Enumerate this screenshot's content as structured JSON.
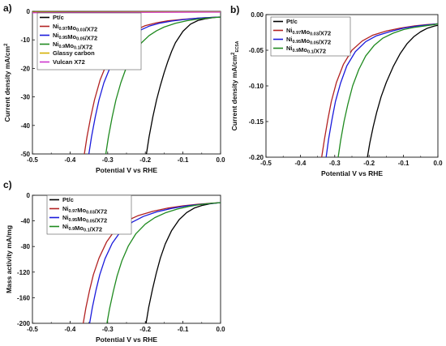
{
  "chart_data": [
    {
      "panel": "a)",
      "type": "line",
      "xlabel": "Potential V vs RHE",
      "ylabel": "Current density mA/cm",
      "ylabel_sup": "2",
      "ylabel_sub": "",
      "xlim": [
        -0.5,
        0.0
      ],
      "ylim": [
        -50,
        0
      ],
      "xticks": [
        "-0.5",
        "-0.4",
        "-0.3",
        "-0.2",
        "-0.1",
        "0.0"
      ],
      "yticks": [
        "0",
        "-10",
        "-20",
        "-30",
        "-40",
        "-50"
      ],
      "ytick_values": [
        0,
        -10,
        -20,
        -30,
        -40,
        -50
      ],
      "legend": "top-left",
      "series": [
        {
          "name": "Pt/c",
          "color": "#000000",
          "parts": [
            {
              "t": "Pt/c"
            }
          ],
          "x": [
            -0.197,
            -0.19,
            -0.18,
            -0.17,
            -0.16,
            -0.15,
            -0.14,
            -0.13,
            -0.12,
            -0.1,
            -0.08,
            -0.06,
            -0.04,
            -0.02,
            -0.005
          ],
          "y": [
            -50,
            -44,
            -37,
            -31,
            -26,
            -21.5,
            -17.5,
            -14,
            -11,
            -7,
            -4.5,
            -3.2,
            -2.6,
            -2.2,
            -2.0
          ]
        },
        {
          "name": "Ni0.97Mo0.03/X72",
          "color": "#b22222",
          "parts": [
            {
              "t": "Ni"
            },
            {
              "t": "0.97",
              "s": 1
            },
            {
              "t": "Mo"
            },
            {
              "t": "0.03",
              "s": 1
            },
            {
              "t": "/X72"
            }
          ],
          "x": [
            -0.362,
            -0.355,
            -0.345,
            -0.335,
            -0.32,
            -0.3,
            -0.28,
            -0.26,
            -0.24,
            -0.22,
            -0.2,
            -0.17,
            -0.14,
            -0.1,
            -0.06,
            -0.02,
            0.0
          ],
          "y": [
            -50,
            -44,
            -37,
            -31,
            -24,
            -17.5,
            -13,
            -10,
            -7.8,
            -6.2,
            -5,
            -4,
            -3.3,
            -2.8,
            -2.4,
            -2.1,
            -2.0
          ]
        },
        {
          "name": "Ni0.95Mo0.05/X72",
          "color": "#1a1adc",
          "parts": [
            {
              "t": "Ni"
            },
            {
              "t": "0.95",
              "s": 1
            },
            {
              "t": "Mo"
            },
            {
              "t": "0.05",
              "s": 1
            },
            {
              "t": "/X72"
            }
          ],
          "x": [
            -0.35,
            -0.343,
            -0.333,
            -0.323,
            -0.31,
            -0.29,
            -0.27,
            -0.25,
            -0.23,
            -0.21,
            -0.19,
            -0.16,
            -0.13,
            -0.1,
            -0.06,
            -0.02,
            0.0
          ],
          "y": [
            -50,
            -44,
            -37,
            -31,
            -25,
            -18.5,
            -13.8,
            -10.5,
            -8,
            -6.4,
            -5.2,
            -4.1,
            -3.4,
            -2.9,
            -2.4,
            -2.1,
            -2.0
          ]
        },
        {
          "name": "Ni0.9Mo0.1/X72",
          "color": "#1f8a1f",
          "parts": [
            {
              "t": "Ni"
            },
            {
              "t": "0.9",
              "s": 1
            },
            {
              "t": "Mo"
            },
            {
              "t": "0.1",
              "s": 1
            },
            {
              "t": "/X72"
            }
          ],
          "x": [
            -0.305,
            -0.298,
            -0.288,
            -0.278,
            -0.265,
            -0.25,
            -0.23,
            -0.21,
            -0.19,
            -0.17,
            -0.15,
            -0.12,
            -0.09,
            -0.06,
            -0.03,
            0.0
          ],
          "y": [
            -50,
            -44,
            -37,
            -31,
            -25,
            -19.5,
            -14.5,
            -11,
            -8.5,
            -6.8,
            -5.5,
            -4.2,
            -3.3,
            -2.7,
            -2.3,
            -2.0
          ]
        },
        {
          "name": "Glassy carbon",
          "color": "#d4b000",
          "parts": [
            {
              "t": "Glassy carbon"
            }
          ],
          "x": [
            -0.5,
            -0.4,
            -0.3,
            -0.2,
            -0.1,
            0.0
          ],
          "y": [
            -0.3,
            -0.28,
            -0.25,
            -0.22,
            -0.2,
            -0.18
          ]
        },
        {
          "name": "Vulcan X72",
          "color": "#cc33cc",
          "parts": [
            {
              "t": "Vulcan X72"
            }
          ],
          "x": [
            -0.5,
            -0.4,
            -0.3,
            -0.2,
            -0.1,
            0.0
          ],
          "y": [
            -0.5,
            -0.45,
            -0.4,
            -0.35,
            -0.3,
            -0.28
          ]
        }
      ]
    },
    {
      "panel": "b)",
      "type": "line",
      "xlabel": "Potential V vs RHE",
      "ylabel": "Current density mA/cm",
      "ylabel_sup": "2",
      "ylabel_sub": "ECSA",
      "xlim": [
        -0.5,
        0.0
      ],
      "ylim": [
        -0.2,
        0.0
      ],
      "xticks": [
        "-0.5",
        "-0.4",
        "-0.3",
        "-0.2",
        "-0.1",
        "0.0"
      ],
      "yticks": [
        "0.00",
        "-0.05",
        "-0.10",
        "-0.15",
        "-0.20"
      ],
      "ytick_values": [
        0.0,
        -0.05,
        -0.1,
        -0.15,
        -0.2
      ],
      "legend": "top-left",
      "series": [
        {
          "name": "Pt/c",
          "color": "#000000",
          "parts": [
            {
              "t": "Pt/c"
            }
          ],
          "x": [
            -0.205,
            -0.198,
            -0.188,
            -0.178,
            -0.165,
            -0.15,
            -0.13,
            -0.11,
            -0.09,
            -0.07,
            -0.05,
            -0.03,
            -0.01,
            0.0
          ],
          "y": [
            -0.2,
            -0.18,
            -0.157,
            -0.137,
            -0.115,
            -0.095,
            -0.073,
            -0.055,
            -0.041,
            -0.031,
            -0.024,
            -0.019,
            -0.016,
            -0.015
          ]
        },
        {
          "name": "Ni0.97Mo0.03/X72",
          "color": "#b22222",
          "parts": [
            {
              "t": "Ni"
            },
            {
              "t": "0.97",
              "s": 1
            },
            {
              "t": "Mo"
            },
            {
              "t": "0.03",
              "s": 1
            },
            {
              "t": "/X72"
            }
          ],
          "x": [
            -0.338,
            -0.33,
            -0.32,
            -0.31,
            -0.295,
            -0.275,
            -0.25,
            -0.22,
            -0.19,
            -0.15,
            -0.11,
            -0.07,
            -0.03,
            0.0
          ],
          "y": [
            -0.2,
            -0.175,
            -0.147,
            -0.122,
            -0.095,
            -0.07,
            -0.05,
            -0.037,
            -0.029,
            -0.023,
            -0.019,
            -0.016,
            -0.014,
            -0.013
          ]
        },
        {
          "name": "Ni0.95Mo0.05/X72",
          "color": "#1a1adc",
          "parts": [
            {
              "t": "Ni"
            },
            {
              "t": "0.95",
              "s": 1
            },
            {
              "t": "Mo"
            },
            {
              "t": "0.05",
              "s": 1
            },
            {
              "t": "/X72"
            }
          ],
          "x": [
            -0.325,
            -0.318,
            -0.308,
            -0.298,
            -0.283,
            -0.265,
            -0.24,
            -0.21,
            -0.18,
            -0.14,
            -0.1,
            -0.06,
            -0.02,
            0.0
          ],
          "y": [
            -0.2,
            -0.175,
            -0.147,
            -0.122,
            -0.096,
            -0.072,
            -0.052,
            -0.038,
            -0.03,
            -0.024,
            -0.019,
            -0.016,
            -0.014,
            -0.013
          ]
        },
        {
          "name": "Ni0.9Mo0.1/X72",
          "color": "#1f8a1f",
          "parts": [
            {
              "t": "Ni"
            },
            {
              "t": "0.9",
              "s": 1
            },
            {
              "t": "Mo"
            },
            {
              "t": "0.1",
              "s": 1
            },
            {
              "t": "/X72"
            }
          ],
          "x": [
            -0.29,
            -0.283,
            -0.273,
            -0.262,
            -0.248,
            -0.23,
            -0.21,
            -0.185,
            -0.16,
            -0.13,
            -0.1,
            -0.07,
            -0.04,
            -0.01,
            0.0
          ],
          "y": [
            -0.2,
            -0.177,
            -0.15,
            -0.126,
            -0.1,
            -0.077,
            -0.058,
            -0.043,
            -0.033,
            -0.026,
            -0.021,
            -0.018,
            -0.016,
            -0.014,
            -0.013
          ]
        }
      ]
    },
    {
      "panel": "c)",
      "type": "line",
      "xlabel": "Potential V vs RHE",
      "ylabel": "Mass activity mA/mg",
      "ylabel_sup": "",
      "ylabel_sub": "",
      "xlim": [
        -0.5,
        0.0
      ],
      "ylim": [
        -200,
        0
      ],
      "xticks": [
        "-0.5",
        "-0.4",
        "-0.3",
        "-0.2",
        "-0.1",
        "0.0"
      ],
      "yticks": [
        "0",
        "-40",
        "-80",
        "-120",
        "-160",
        "-200"
      ],
      "ytick_values": [
        0,
        -40,
        -80,
        -120,
        -160,
        -200
      ],
      "legend": "top-left",
      "series": [
        {
          "name": "Pt/c",
          "color": "#000000",
          "parts": [
            {
              "t": "Pt/c"
            }
          ],
          "x": [
            -0.198,
            -0.191,
            -0.181,
            -0.171,
            -0.16,
            -0.147,
            -0.13,
            -0.11,
            -0.09,
            -0.07,
            -0.05,
            -0.03,
            -0.01,
            0.0
          ],
          "y": [
            -200,
            -175,
            -147,
            -122,
            -98,
            -76,
            -55,
            -38,
            -27,
            -20,
            -16,
            -13.5,
            -12,
            -11.5
          ]
        },
        {
          "name": "Ni0.97Mo0.03/X72",
          "color": "#b22222",
          "parts": [
            {
              "t": "Ni"
            },
            {
              "t": "0.97",
              "s": 1
            },
            {
              "t": "Mo"
            },
            {
              "t": "0.03",
              "s": 1
            },
            {
              "t": "/X72"
            }
          ],
          "x": [
            -0.365,
            -0.358,
            -0.348,
            -0.338,
            -0.323,
            -0.303,
            -0.28,
            -0.25,
            -0.22,
            -0.18,
            -0.14,
            -0.1,
            -0.06,
            -0.02,
            0.0
          ],
          "y": [
            -200,
            -176,
            -148,
            -124,
            -98,
            -73,
            -54,
            -40,
            -32,
            -25,
            -20,
            -16.5,
            -14,
            -12.2,
            -11.5
          ]
        },
        {
          "name": "Ni0.95Mo0.05/X72",
          "color": "#1a1adc",
          "parts": [
            {
              "t": "Ni"
            },
            {
              "t": "0.95",
              "s": 1
            },
            {
              "t": "Mo"
            },
            {
              "t": "0.05",
              "s": 1
            },
            {
              "t": "/X72"
            }
          ],
          "x": [
            -0.348,
            -0.341,
            -0.331,
            -0.321,
            -0.307,
            -0.288,
            -0.265,
            -0.235,
            -0.205,
            -0.17,
            -0.13,
            -0.09,
            -0.05,
            -0.01,
            0.0
          ],
          "y": [
            -200,
            -176,
            -148,
            -124,
            -99,
            -75,
            -56,
            -42,
            -33,
            -26,
            -20.5,
            -16.5,
            -14,
            -12,
            -11.5
          ]
        },
        {
          "name": "Ni0.9Mo0.1/X72",
          "color": "#1f8a1f",
          "parts": [
            {
              "t": "Ni"
            },
            {
              "t": "0.9",
              "s": 1
            },
            {
              "t": "Mo"
            },
            {
              "t": "0.1",
              "s": 1
            },
            {
              "t": "/X72"
            }
          ],
          "x": [
            -0.302,
            -0.295,
            -0.285,
            -0.275,
            -0.262,
            -0.245,
            -0.225,
            -0.2,
            -0.175,
            -0.145,
            -0.115,
            -0.085,
            -0.055,
            -0.025,
            0.0
          ],
          "y": [
            -200,
            -177,
            -150,
            -126,
            -102,
            -79,
            -60,
            -45,
            -35,
            -27,
            -21.5,
            -17.5,
            -14.5,
            -12.5,
            -11.5
          ]
        }
      ]
    }
  ]
}
